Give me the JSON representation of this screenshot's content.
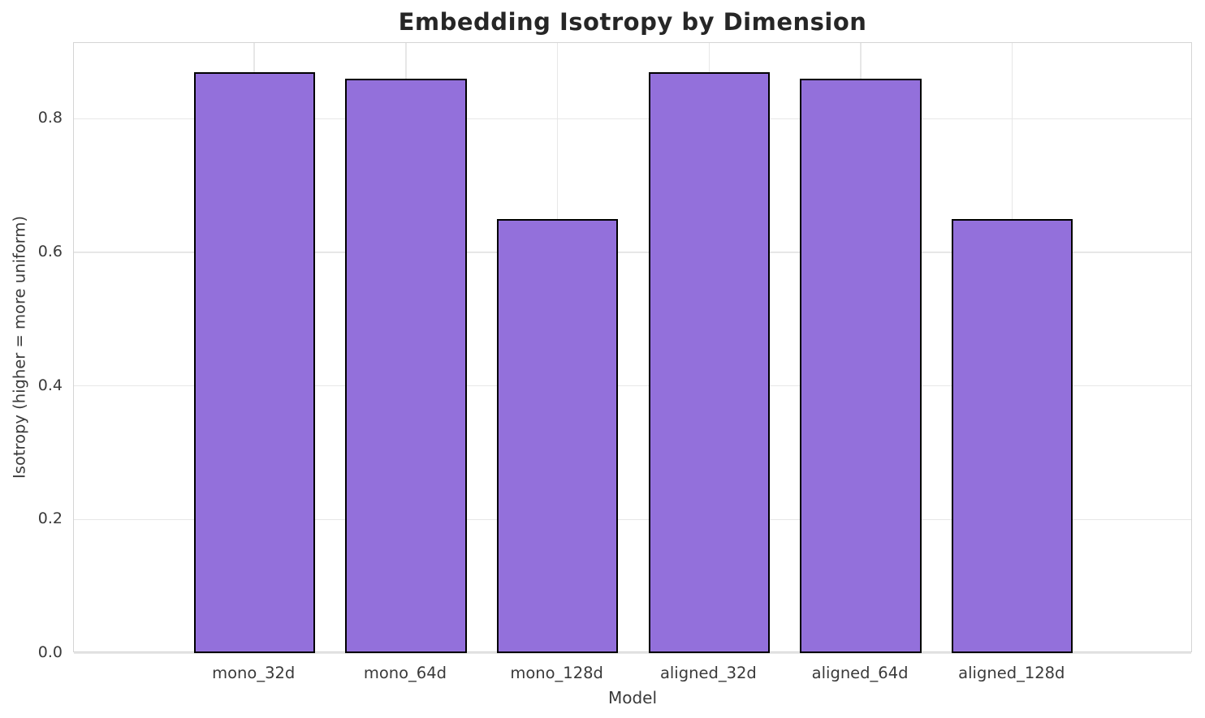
{
  "chart_data": {
    "type": "bar",
    "title": "Embedding Isotropy by Dimension",
    "xlabel": "Model",
    "ylabel": "Isotropy (higher = more uniform)",
    "categories": [
      "mono_32d",
      "mono_64d",
      "mono_128d",
      "aligned_32d",
      "aligned_64d",
      "aligned_128d"
    ],
    "values": [
      0.87,
      0.86,
      0.65,
      0.87,
      0.86,
      0.65
    ],
    "ylim": [
      0,
      0.9135
    ],
    "yticks": [
      0.0,
      0.2,
      0.4,
      0.6,
      0.8
    ],
    "ytick_labels": [
      "0.0",
      "0.2",
      "0.4",
      "0.6",
      "0.8"
    ],
    "grid": true,
    "legend": "none",
    "bar_width_fraction": 0.8,
    "x_margin_units": 0.69,
    "colors": {
      "bar_fill": "#9370DB",
      "bar_edge": "#000000",
      "grid": "#e7e7e7",
      "spine": "#d4d4d4",
      "title_text": "#262626",
      "tick_text": "#3a3a3a",
      "background": "#ffffff"
    }
  }
}
